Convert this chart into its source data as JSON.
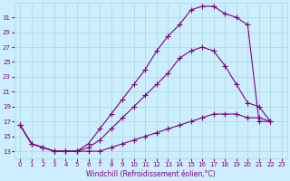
{
  "xlabel": "Windchill (Refroidissement éolien,°C)",
  "bg_color": "#cceeff",
  "grid_color": "#aadddd",
  "line_color": "#800080",
  "x_ticks": [
    0,
    1,
    2,
    3,
    4,
    5,
    6,
    7,
    8,
    9,
    10,
    11,
    12,
    13,
    14,
    15,
    16,
    17,
    18,
    19,
    20,
    21,
    22,
    23
  ],
  "y_ticks": [
    13,
    15,
    17,
    19,
    21,
    23,
    25,
    27,
    29,
    31
  ],
  "ylim": [
    12.0,
    33.0
  ],
  "xlim": [
    -0.5,
    23.5
  ],
  "line1_x": [
    0,
    1,
    2,
    3,
    4,
    5,
    6,
    7,
    8,
    9,
    10,
    11,
    12,
    13,
    14,
    15,
    16,
    17,
    18,
    19,
    20,
    21,
    22
  ],
  "line1_y": [
    16.5,
    14.0,
    13.5,
    13.0,
    13.0,
    13.0,
    14.0,
    16.0,
    18.0,
    20.0,
    22.0,
    24.0,
    26.5,
    28.5,
    30.0,
    32.0,
    32.5,
    32.5,
    31.5,
    31.0,
    30.0,
    17.0,
    17.0
  ],
  "line2_x": [
    0,
    1,
    2,
    3,
    4,
    5,
    6,
    7,
    8,
    9,
    10,
    11,
    12,
    13,
    14,
    15,
    16,
    17,
    18,
    19,
    20,
    21,
    22
  ],
  "line2_y": [
    16.5,
    14.0,
    13.5,
    13.0,
    13.0,
    13.0,
    13.5,
    14.5,
    16.0,
    17.5,
    19.0,
    20.5,
    22.0,
    23.5,
    25.5,
    26.5,
    27.0,
    26.5,
    24.5,
    22.0,
    19.5,
    19.0,
    17.0
  ],
  "line3_x": [
    0,
    1,
    2,
    3,
    4,
    5,
    6,
    7,
    8,
    9,
    10,
    11,
    12,
    13,
    14,
    15,
    16,
    17,
    18,
    19,
    20,
    21,
    22
  ],
  "line3_y": [
    16.5,
    14.0,
    13.5,
    13.0,
    13.0,
    13.0,
    13.0,
    13.0,
    13.5,
    14.0,
    14.5,
    15.0,
    15.5,
    16.0,
    16.5,
    17.0,
    17.5,
    18.0,
    18.0,
    18.0,
    17.5,
    17.5,
    17.0
  ],
  "marker_size": 4,
  "line_width": 0.8
}
